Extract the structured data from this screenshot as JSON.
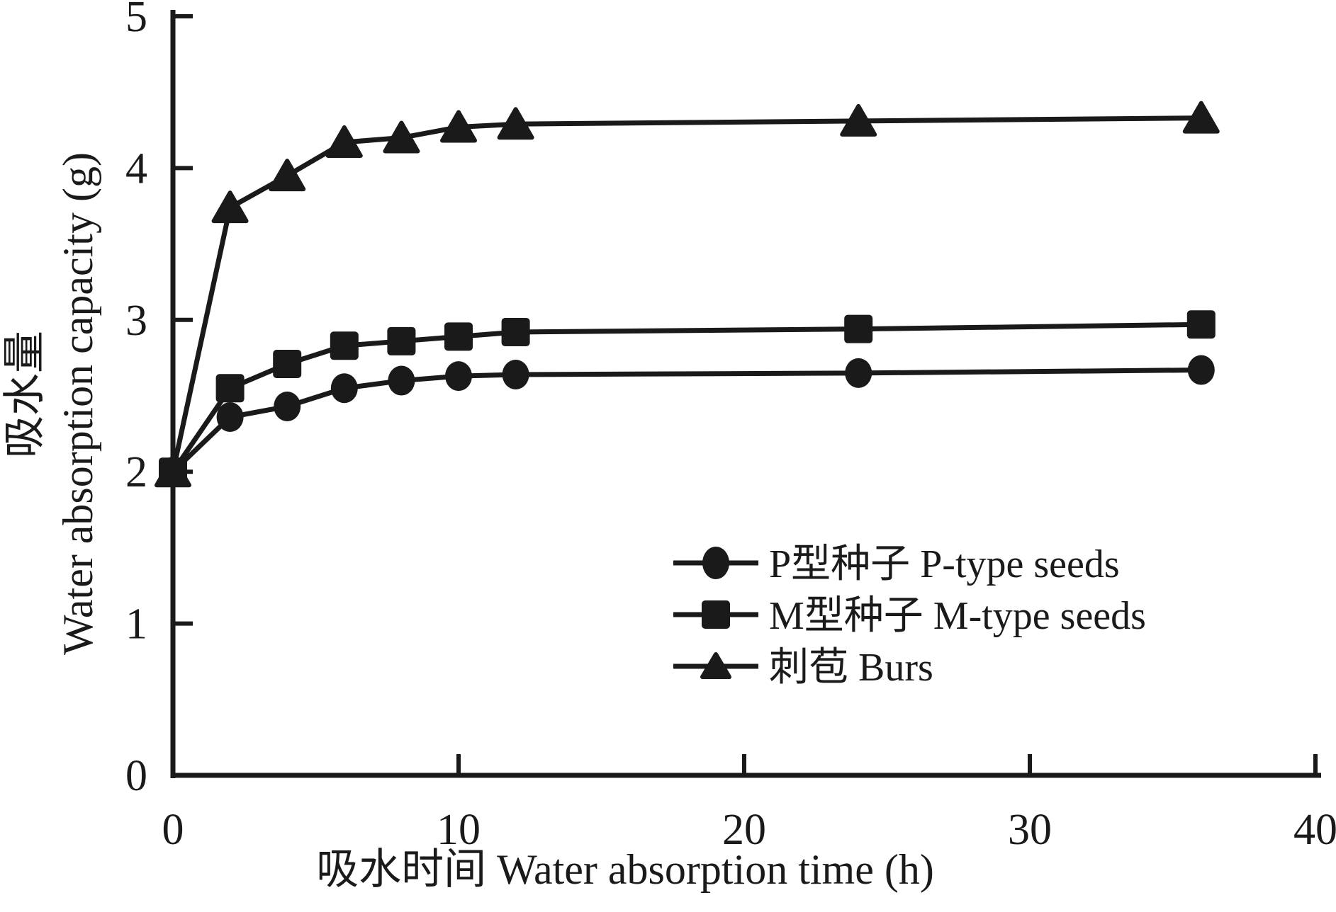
{
  "figure": {
    "background": "#ffffff",
    "ink_color": "#1a1a1a"
  },
  "chart_data": {
    "type": "line",
    "x": [
      0,
      2,
      4,
      6,
      8,
      10,
      12,
      24,
      36
    ],
    "series": [
      {
        "name": "P型种子 P-type seeds",
        "marker": "circle",
        "values": [
          2.0,
          2.36,
          2.43,
          2.55,
          2.6,
          2.63,
          2.64,
          2.65,
          2.67
        ]
      },
      {
        "name": "M型种子 M-type seeds",
        "marker": "square",
        "values": [
          2.0,
          2.55,
          2.71,
          2.83,
          2.86,
          2.89,
          2.92,
          2.94,
          2.97
        ]
      },
      {
        "name": "刺苞 Burs",
        "marker": "triangle",
        "values": [
          2.0,
          3.74,
          3.95,
          4.17,
          4.2,
          4.27,
          4.29,
          4.31,
          4.33
        ]
      }
    ],
    "xlabel": "吸水时间 Water absorption time (h)",
    "ylabel_line1": "吸水量",
    "ylabel_line2": "Water absorption capacity (g)",
    "xlim": [
      0,
      40
    ],
    "ylim": [
      0,
      5
    ],
    "x_ticks": [
      0,
      10,
      20,
      30,
      40
    ],
    "y_ticks": [
      0,
      1,
      2,
      3,
      4,
      5
    ],
    "grid": false,
    "legend_position": "inside-center-right"
  }
}
